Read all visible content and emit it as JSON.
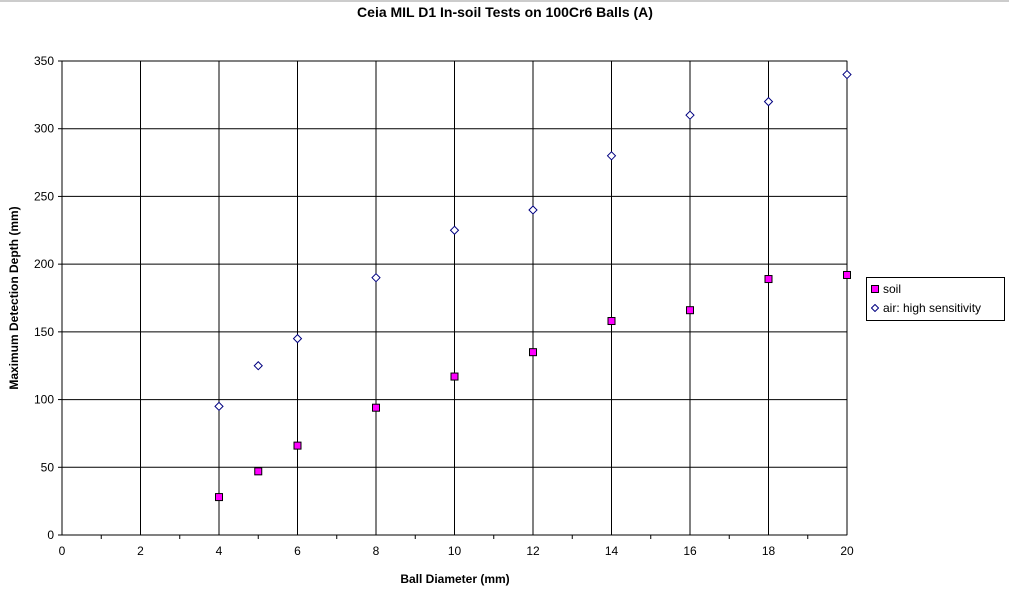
{
  "chart_data": {
    "type": "scatter",
    "title": "Ceia MIL D1 In-soil Tests on 100Cr6 Balls (A)",
    "xlabel": "Ball Diameter (mm)",
    "ylabel": "Maximum Detection Depth (mm)",
    "xlim": [
      0,
      20
    ],
    "ylim": [
      0,
      350
    ],
    "xticks": [
      0,
      2,
      4,
      6,
      8,
      10,
      12,
      14,
      16,
      18,
      20
    ],
    "yticks": [
      0,
      50,
      100,
      150,
      200,
      250,
      300,
      350
    ],
    "grid": true,
    "legend_position": "right",
    "series": [
      {
        "name": "soil",
        "marker": "square",
        "color": "#ff00ff",
        "x": [
          4,
          5,
          6,
          8,
          10,
          12,
          14,
          16,
          18,
          20
        ],
        "y": [
          28,
          47,
          66,
          94,
          117,
          135,
          158,
          166,
          189,
          192
        ]
      },
      {
        "name": "air: high sensitivity",
        "marker": "diamond",
        "color": "#000080",
        "x": [
          4,
          5,
          6,
          8,
          10,
          12,
          14,
          16,
          18,
          20
        ],
        "y": [
          95,
          125,
          145,
          190,
          225,
          240,
          280,
          310,
          320,
          340
        ]
      }
    ]
  }
}
